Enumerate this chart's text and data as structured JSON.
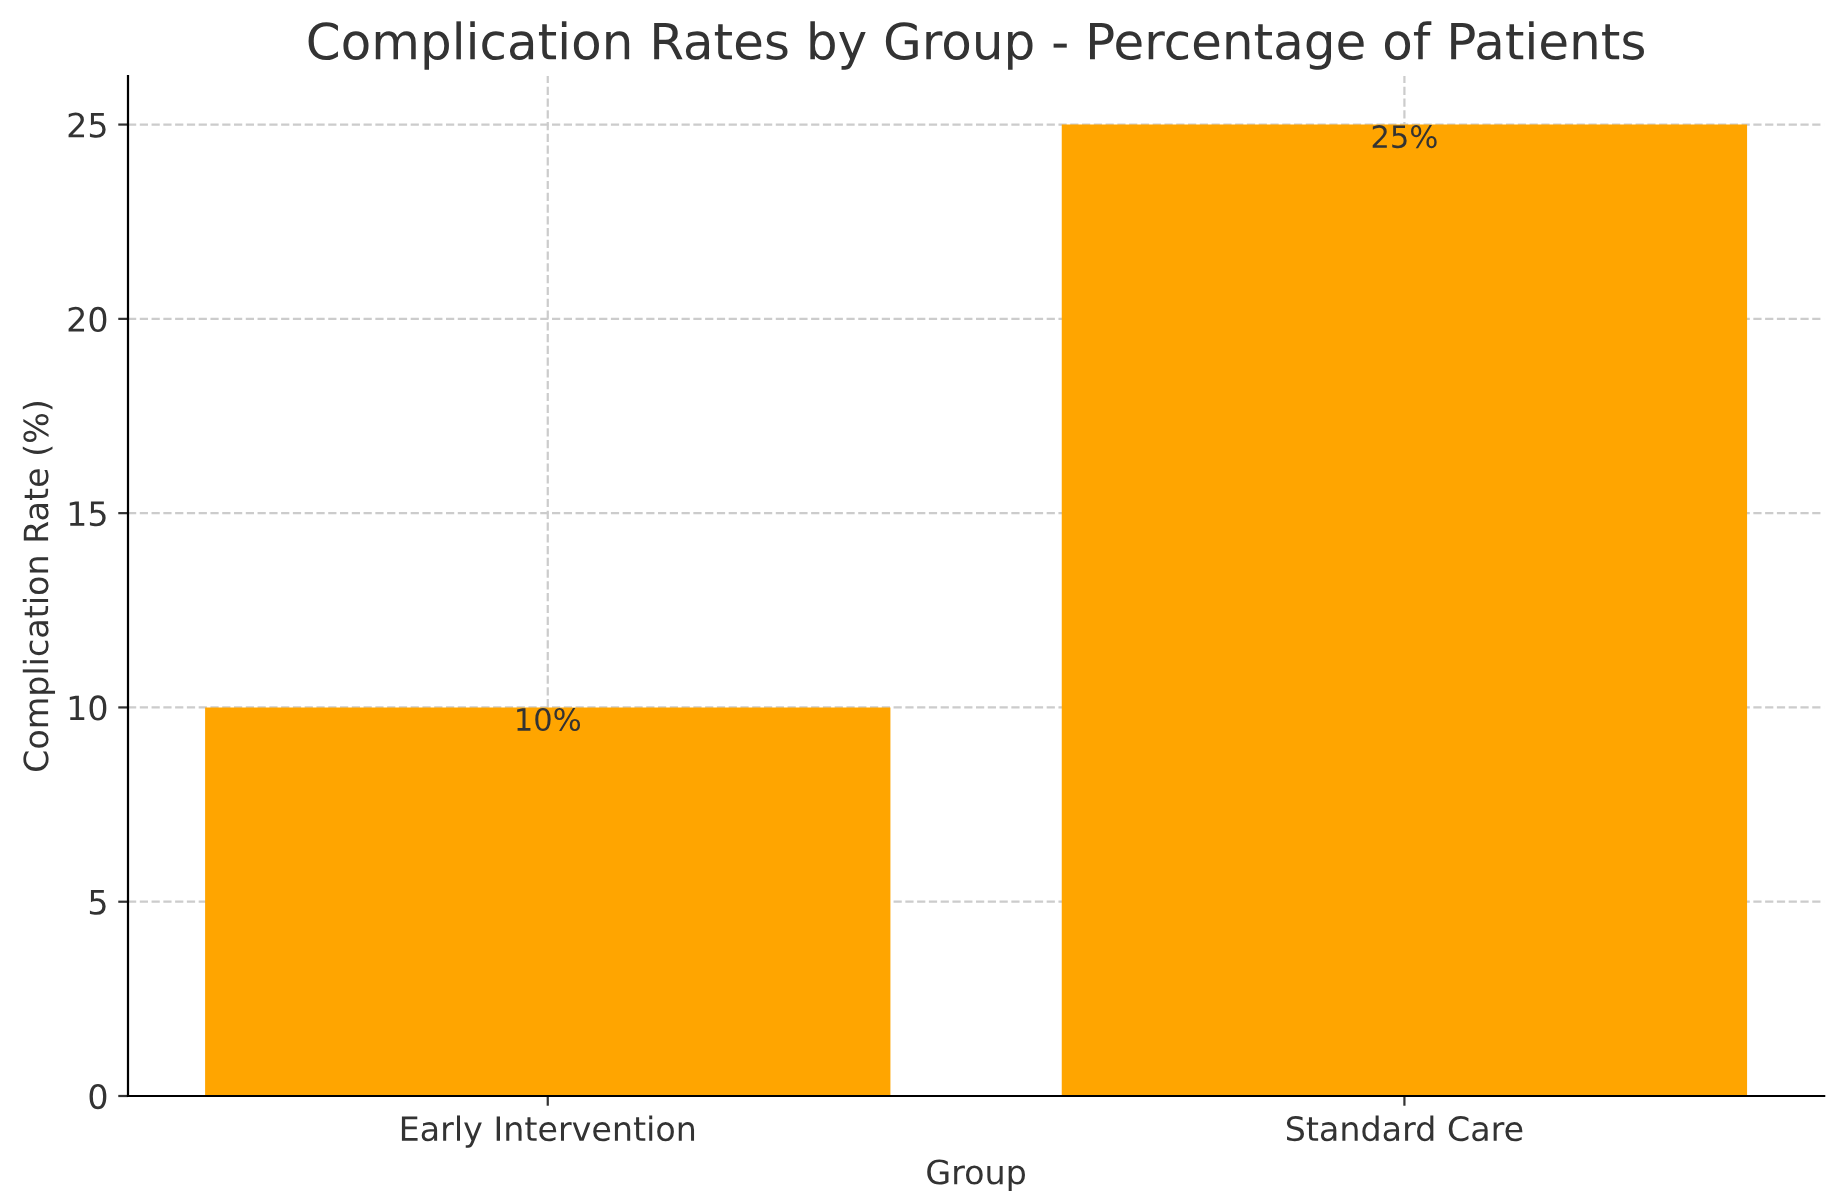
{
  "chart_data": {
    "type": "bar",
    "title": "Complication Rates by Group - Percentage of Patients",
    "xlabel": "Group",
    "ylabel": "Complication Rate (%)",
    "categories": [
      "Early Intervention",
      "Standard Care"
    ],
    "values": [
      10,
      25
    ],
    "value_labels": [
      "10%",
      "25%"
    ],
    "color": "#ffa500",
    "ylim": [
      0,
      26.25
    ],
    "yticks": [
      0,
      5,
      10,
      15,
      20,
      25
    ],
    "grid": true,
    "legend": false
  }
}
